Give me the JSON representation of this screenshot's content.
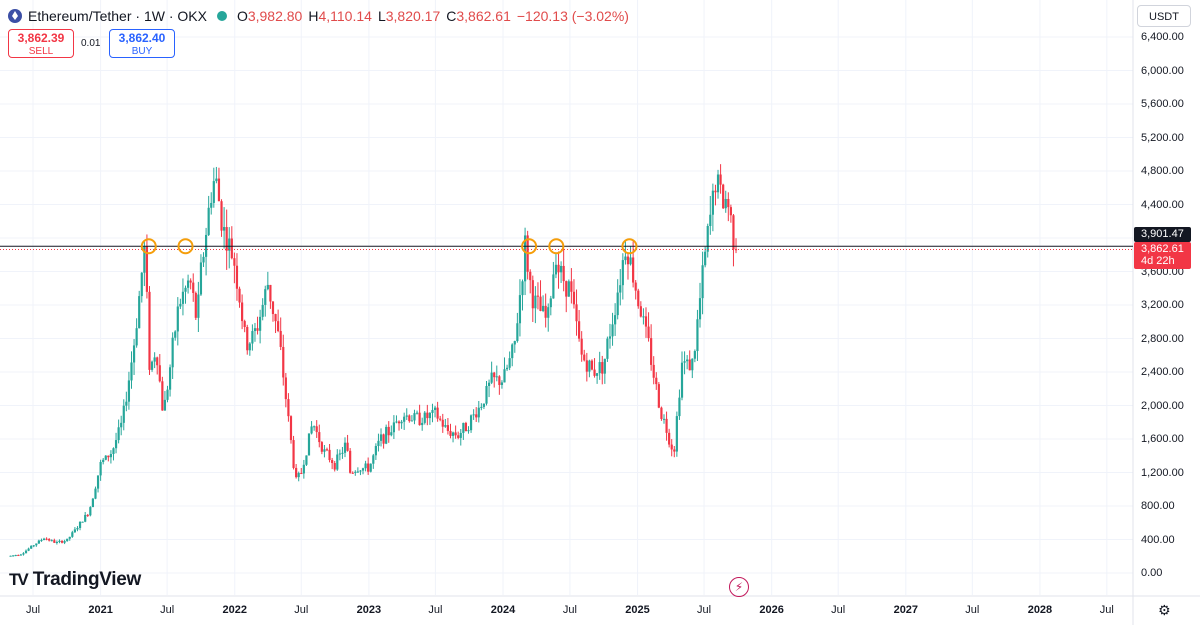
{
  "legend": {
    "symbol": "Ethereum/Tether · 1W · OKX",
    "open_label": "O",
    "open": "3,982.80",
    "high_label": "H",
    "high": "4,110.14",
    "low_label": "L",
    "low": "3,820.17",
    "close_label": "C",
    "close": "3,862.61",
    "change": "−120.13 (−3.02%)"
  },
  "trade": {
    "sell_price": "3,862.39",
    "sell_label": "SELL",
    "spread": "0.01",
    "buy_price": "3,862.40",
    "buy_label": "BUY"
  },
  "currency": "USDT",
  "watermark": "TradingView",
  "price_scale_label": "3,901.47",
  "last_price_label": "3,862.61",
  "countdown_label": "4d 22h",
  "colors": {
    "up": "#26a69a",
    "down": "#f23645",
    "level_line": "#131722",
    "circle": "#f59e0b"
  },
  "icons": {
    "settings": "gear-icon",
    "bolt": "lightning-icon",
    "logo": "tradingview-logo-icon"
  },
  "chart_data": {
    "type": "candlestick",
    "timeframe": "1W",
    "ylim": [
      0,
      6600
    ],
    "yticks": [
      "0.00",
      "400.00",
      "800.00",
      "1,200.00",
      "1,600.00",
      "2,000.00",
      "2,400.00",
      "2,800.00",
      "3,200.00",
      "3,600.00",
      "4,000.00",
      "4,400.00",
      "4,800.00",
      "5,200.00",
      "5,600.00",
      "6,000.00",
      "6,400.00"
    ],
    "xticks": [
      "Jul",
      "2021",
      "Jul",
      "2022",
      "Jul",
      "2023",
      "Jul",
      "2024",
      "Jul",
      "2025",
      "Jul",
      "2026",
      "Jul",
      "2027",
      "Jul",
      "2028",
      "Jul"
    ],
    "xtick_dates": [
      "2020-07-01",
      "2021-01-01",
      "2021-07-01",
      "2022-01-01",
      "2022-07-01",
      "2023-01-01",
      "2023-07-01",
      "2024-01-01",
      "2024-07-01",
      "2025-01-01",
      "2025-07-01",
      "2026-01-01",
      "2026-07-01",
      "2027-01-01",
      "2027-07-01",
      "2028-01-01",
      "2028-07-01"
    ],
    "price_path": [
      [
        "2020-05-01",
        205
      ],
      [
        "2020-06-01",
        230
      ],
      [
        "2020-07-01",
        330
      ],
      [
        "2020-08-01",
        420
      ],
      [
        "2020-09-01",
        360
      ],
      [
        "2020-10-01",
        390
      ],
      [
        "2020-11-01",
        560
      ],
      [
        "2020-12-01",
        740
      ],
      [
        "2021-01-01",
        1300
      ],
      [
        "2021-02-01",
        1450
      ],
      [
        "2021-03-01",
        1800
      ],
      [
        "2021-04-01",
        2700
      ],
      [
        "2021-05-01",
        3900
      ],
      [
        "2021-05-15",
        2400
      ],
      [
        "2021-06-01",
        2700
      ],
      [
        "2021-06-20",
        1900
      ],
      [
        "2021-07-01",
        2200
      ],
      [
        "2021-08-01",
        3200
      ],
      [
        "2021-09-01",
        3500
      ],
      [
        "2021-09-20",
        3000
      ],
      [
        "2021-10-01",
        3600
      ],
      [
        "2021-11-01",
        4650
      ],
      [
        "2021-11-10",
        4700
      ],
      [
        "2021-12-01",
        4100
      ],
      [
        "2022-01-01",
        3700
      ],
      [
        "2022-02-01",
        2700
      ],
      [
        "2022-03-01",
        2900
      ],
      [
        "2022-04-01",
        3450
      ],
      [
        "2022-05-01",
        2800
      ],
      [
        "2022-06-01",
        1650
      ],
      [
        "2022-06-15",
        1100
      ],
      [
        "2022-07-01",
        1200
      ],
      [
        "2022-08-01",
        1800
      ],
      [
        "2022-09-01",
        1450
      ],
      [
        "2022-10-01",
        1300
      ],
      [
        "2022-11-01",
        1550
      ],
      [
        "2022-11-10",
        1200
      ],
      [
        "2022-12-01",
        1250
      ],
      [
        "2023-01-01",
        1250
      ],
      [
        "2023-02-01",
        1600
      ],
      [
        "2023-03-01",
        1700
      ],
      [
        "2023-04-01",
        1900
      ],
      [
        "2023-05-01",
        1850
      ],
      [
        "2023-06-01",
        1850
      ],
      [
        "2023-07-01",
        1900
      ],
      [
        "2023-08-01",
        1700
      ],
      [
        "2023-09-01",
        1650
      ],
      [
        "2023-10-01",
        1800
      ],
      [
        "2023-11-01",
        2000
      ],
      [
        "2023-12-01",
        2300
      ],
      [
        "2024-01-01",
        2300
      ],
      [
        "2024-02-01",
        2700
      ],
      [
        "2024-03-01",
        3900
      ],
      [
        "2024-03-20",
        3300
      ],
      [
        "2024-04-01",
        3200
      ],
      [
        "2024-05-01",
        3000
      ],
      [
        "2024-05-25",
        3900
      ],
      [
        "2024-06-01",
        3600
      ],
      [
        "2024-07-01",
        3400
      ],
      [
        "2024-08-01",
        2600
      ],
      [
        "2024-09-01",
        2400
      ],
      [
        "2024-10-01",
        2500
      ],
      [
        "2024-11-01",
        3200
      ],
      [
        "2024-12-01",
        3950
      ],
      [
        "2025-01-01",
        3300
      ],
      [
        "2025-02-01",
        2700
      ],
      [
        "2025-03-01",
        2000
      ],
      [
        "2025-04-01",
        1550
      ],
      [
        "2025-04-10",
        1450
      ],
      [
        "2025-05-01",
        2500
      ],
      [
        "2025-06-01",
        2500
      ],
      [
        "2025-07-01",
        3700
      ],
      [
        "2025-08-01",
        4700
      ],
      [
        "2025-08-25",
        4400
      ],
      [
        "2025-09-01",
        4500
      ],
      [
        "2025-09-20",
        4000
      ],
      [
        "2025-10-01",
        3862.61
      ]
    ],
    "resistance_level": 3901.47,
    "touch_points": [
      {
        "date": "2021-05-12",
        "price": 3901.47
      },
      {
        "date": "2021-08-20",
        "price": 3901.47
      },
      {
        "date": "2024-03-12",
        "price": 3901.47
      },
      {
        "date": "2024-05-25",
        "price": 3901.47
      },
      {
        "date": "2024-12-10",
        "price": 3901.47
      }
    ]
  }
}
